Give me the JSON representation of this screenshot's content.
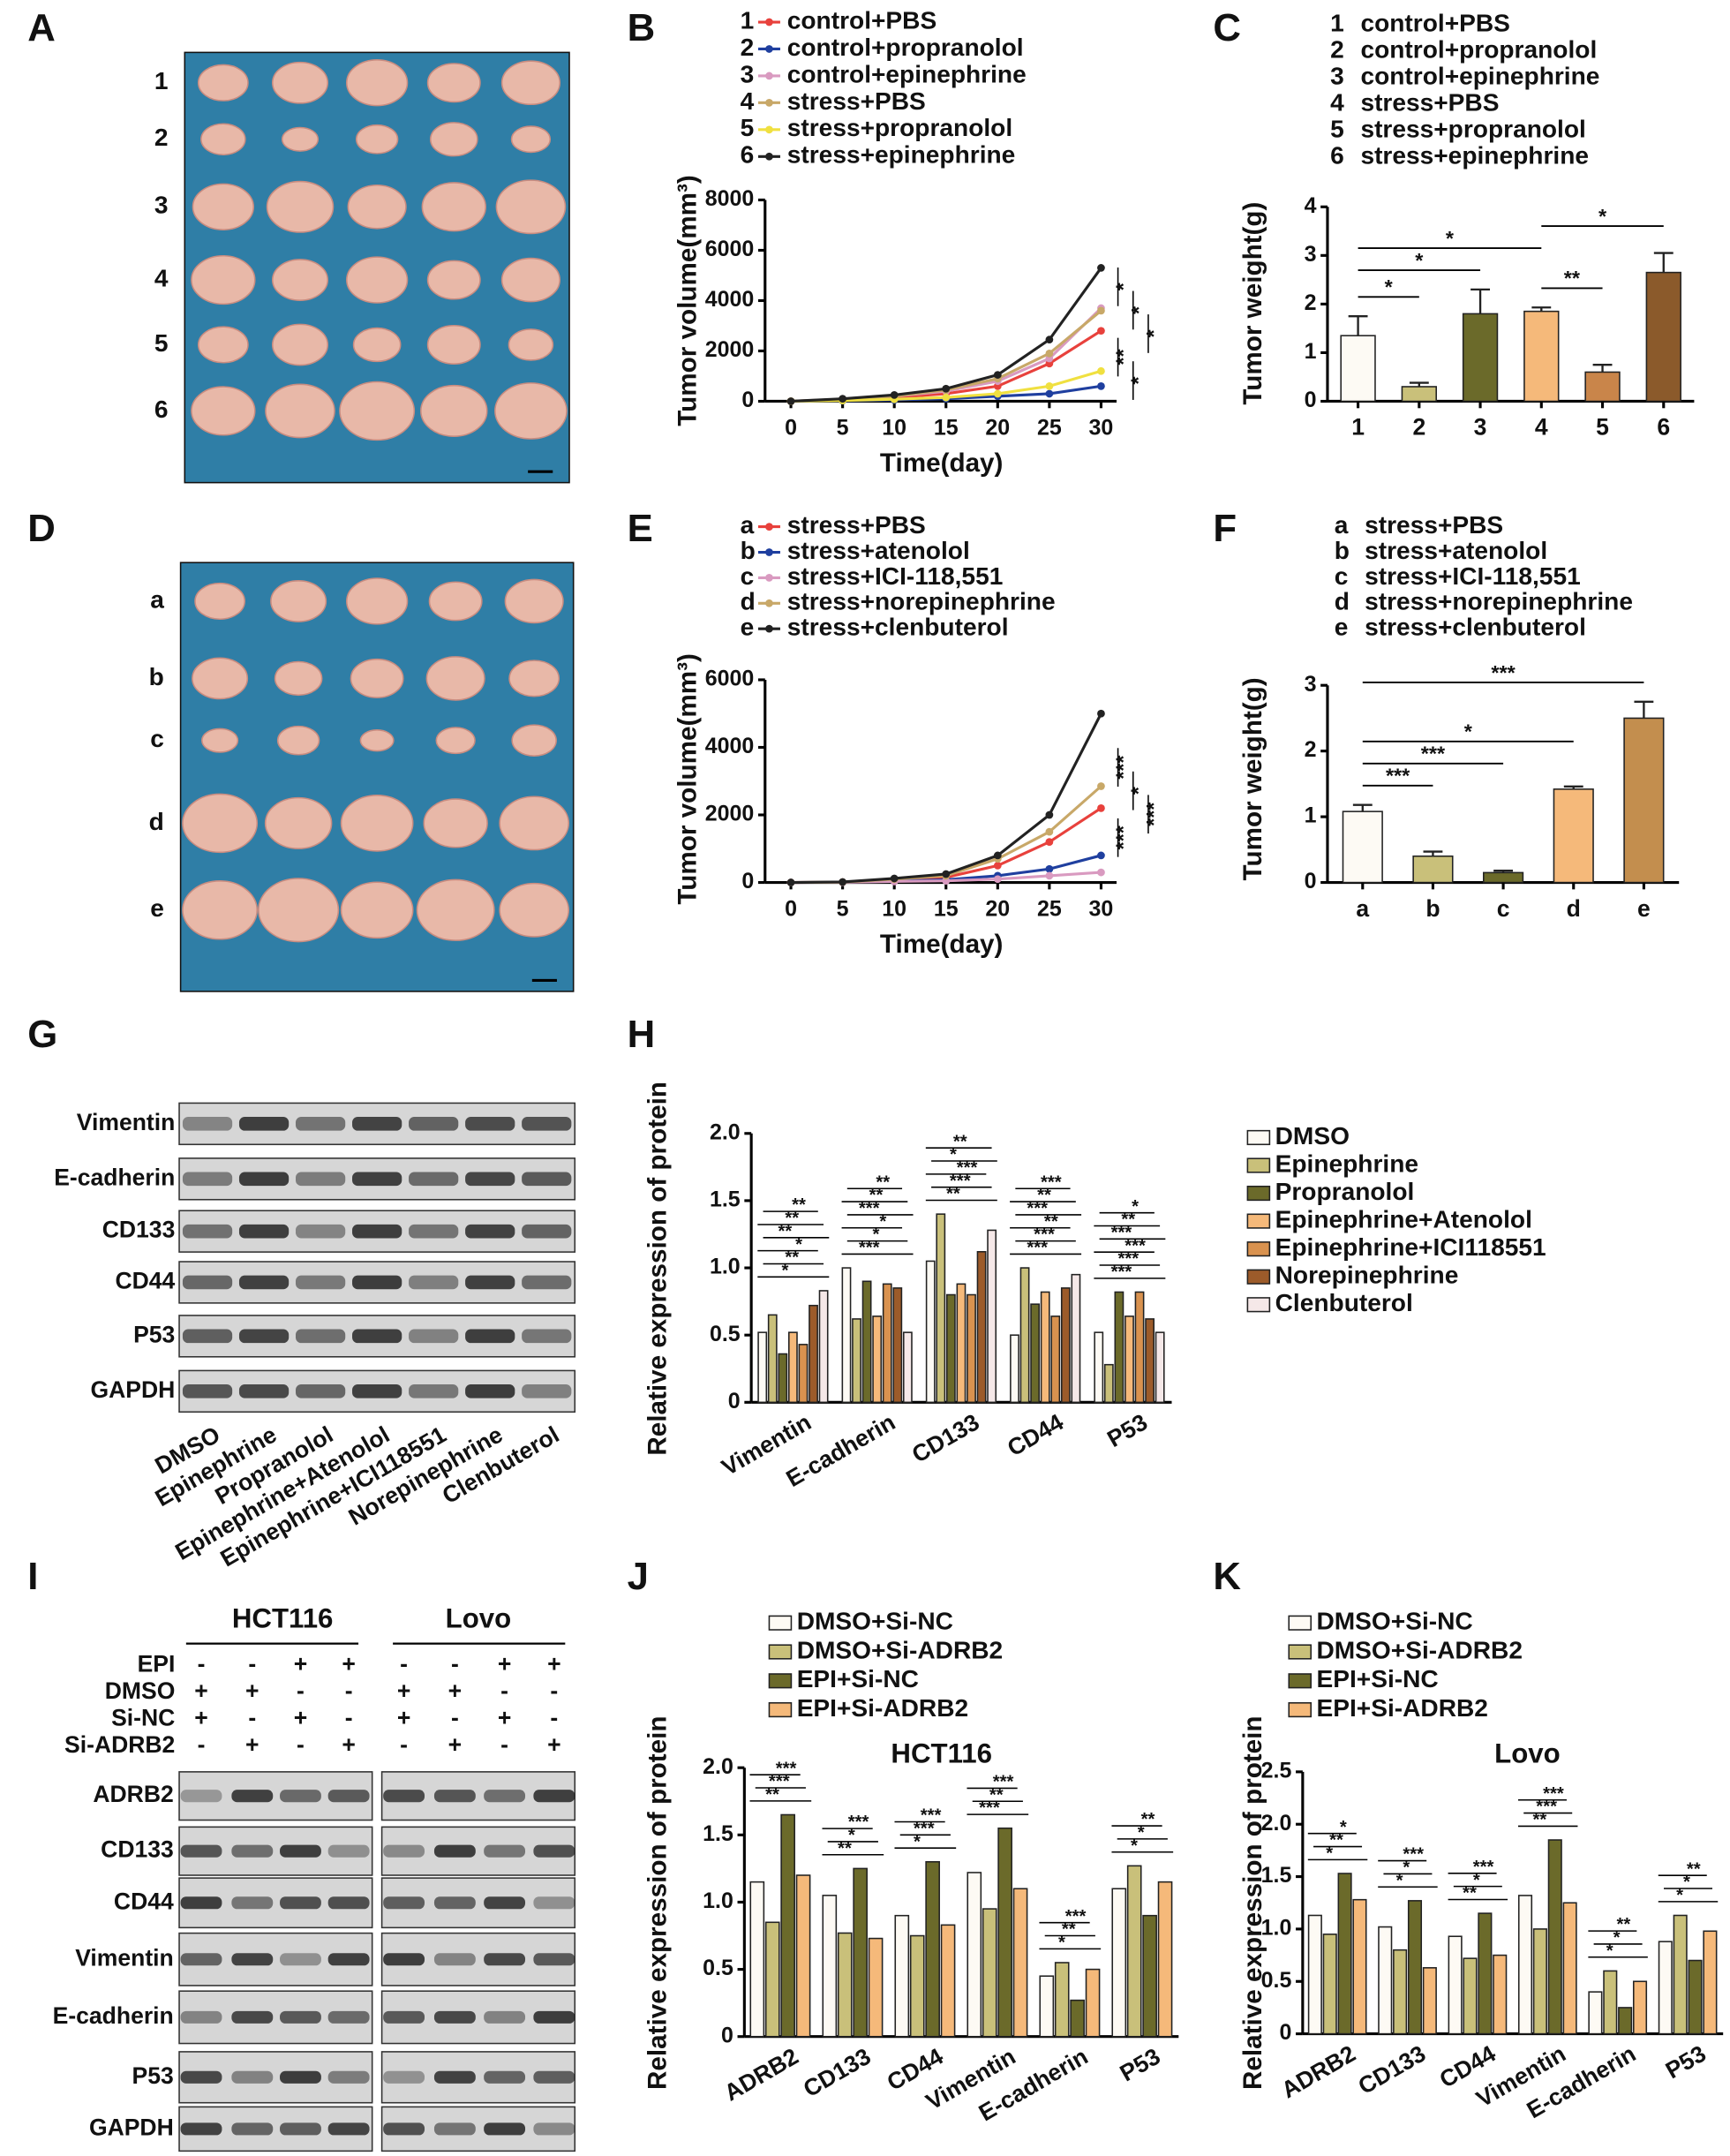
{
  "panel_labels": [
    "A",
    "B",
    "C",
    "D",
    "E",
    "F",
    "G",
    "H",
    "I",
    "J",
    "K"
  ],
  "photos": [
    {
      "row_labels": [
        "1",
        "2",
        "3",
        "4",
        "5",
        "6"
      ]
    },
    {
      "row_labels": [
        "a",
        "b",
        "c",
        "d",
        "e"
      ]
    }
  ],
  "blot_g": {
    "rows": [
      "Vimentin",
      "E-cadherin",
      "CD133",
      "CD44",
      "P53",
      "GAPDH"
    ],
    "columns": [
      "DMSO",
      "Epinephrine",
      "Propranolol",
      "Epinephrine+Atenolol",
      "Epinephrine+ICI118551",
      "Norepinephrine",
      "Clenbuterol"
    ]
  },
  "blot_i": {
    "groups": [
      "HCT116",
      "Lovo"
    ],
    "conditions": [
      {
        "name": "EPI",
        "signs": [
          "-",
          "-",
          "+",
          "+",
          "-",
          "-",
          "+",
          "+"
        ]
      },
      {
        "name": "DMSO",
        "signs": [
          "+",
          "+",
          "-",
          "-",
          "+",
          "+",
          "-",
          "-"
        ]
      },
      {
        "name": "Si-NC",
        "signs": [
          "+",
          "-",
          "+",
          "-",
          "+",
          "-",
          "+",
          "-"
        ]
      },
      {
        "name": "Si-ADRB2",
        "signs": [
          "-",
          "+",
          "-",
          "+",
          "-",
          "+",
          "-",
          "+"
        ]
      }
    ],
    "rows": [
      "ADRB2",
      "CD133",
      "CD44",
      "Vimentin",
      "E-cadherin",
      "P53",
      "GAPDH"
    ]
  },
  "chart_data": [
    {
      "type": "line",
      "x_label": "Time(day)",
      "y_label": "Tumor volume(mm³)",
      "x": [
        0,
        5,
        10,
        15,
        20,
        25,
        30
      ],
      "xlim": [
        -2.5,
        31.5
      ],
      "xticks": [
        0,
        5,
        10,
        15,
        20,
        25,
        30
      ],
      "ylim": [
        0,
        8000
      ],
      "yticks": [
        0,
        2000,
        4000,
        6000,
        8000
      ],
      "series": [
        {
          "id": "1",
          "name": "control+PBS",
          "color": "#e8413c",
          "values": [
            0,
            50,
            150,
            300,
            600,
            1500,
            2800
          ]
        },
        {
          "id": "2",
          "name": "control+propranolol",
          "color": "#1f3f9f",
          "values": [
            0,
            20,
            50,
            100,
            200,
            300,
            600
          ]
        },
        {
          "id": "3",
          "name": "control+epinephrine",
          "color": "#d99ac0",
          "values": [
            0,
            80,
            200,
            400,
            800,
            1700,
            3700
          ]
        },
        {
          "id": "4",
          "name": "stress+PBS",
          "color": "#c8a868",
          "values": [
            0,
            80,
            200,
            450,
            900,
            1900,
            3600
          ]
        },
        {
          "id": "5",
          "name": "stress+propranolol",
          "color": "#f0e040",
          "values": [
            0,
            30,
            80,
            150,
            300,
            600,
            1200
          ]
        },
        {
          "id": "6",
          "name": "stress+epinephrine",
          "color": "#222222",
          "values": [
            0,
            100,
            250,
            500,
            1050,
            2450,
            5300
          ]
        }
      ],
      "annotations": [
        "*",
        "*",
        "*",
        "**",
        "*"
      ]
    },
    {
      "type": "bar",
      "y_label": "Tumor weight(g)",
      "categories": [
        "1",
        "2",
        "3",
        "4",
        "5",
        "6"
      ],
      "category_names": [
        "control+PBS",
        "control+propranolol",
        "control+epinephrine",
        "stress+PBS",
        "stress+propranolol",
        "stress+epinephrine"
      ],
      "values": [
        1.35,
        0.3,
        1.8,
        1.85,
        0.6,
        2.65
      ],
      "errors": [
        0.4,
        0.08,
        0.5,
        0.08,
        0.15,
        0.4
      ],
      "colors": [
        "#fdfaf4",
        "#c9c07a",
        "#6b6a2a",
        "#f5b97a",
        "#c9854a",
        "#8b5a2b"
      ],
      "ylim": [
        0,
        4
      ],
      "yticks": [
        0,
        1,
        2,
        3,
        4
      ],
      "brackets": [
        {
          "label": "*",
          "from": 0,
          "to": 1
        },
        {
          "label": "*",
          "from": 0,
          "to": 2
        },
        {
          "label": "*",
          "from": 0,
          "to": 3
        },
        {
          "label": "**",
          "from": 3,
          "to": 4
        },
        {
          "label": "*",
          "from": 3,
          "to": 5
        }
      ]
    },
    {
      "type": "line",
      "x_label": "Time(day)",
      "y_label": "Tumor volume(mm³)",
      "x": [
        0,
        5,
        10,
        15,
        20,
        25,
        30
      ],
      "xlim": [
        -2.5,
        31.5
      ],
      "xticks": [
        0,
        5,
        10,
        15,
        20,
        25,
        30
      ],
      "ylim": [
        0,
        6000
      ],
      "yticks": [
        0,
        2000,
        4000,
        6000
      ],
      "series": [
        {
          "id": "a",
          "name": "stress+PBS",
          "color": "#e8413c",
          "values": [
            0,
            10,
            80,
            150,
            500,
            1200,
            2200
          ]
        },
        {
          "id": "b",
          "name": "stress+atenolol",
          "color": "#1f3f9f",
          "values": [
            0,
            5,
            40,
            80,
            200,
            400,
            800
          ]
        },
        {
          "id": "c",
          "name": "stress+ICI-118,551",
          "color": "#d99ac0",
          "values": [
            0,
            5,
            30,
            50,
            100,
            200,
            300
          ]
        },
        {
          "id": "d",
          "name": "stress+norepinephrine",
          "color": "#c8a868",
          "values": [
            0,
            10,
            100,
            200,
            700,
            1500,
            2850
          ]
        },
        {
          "id": "e",
          "name": "stress+clenbuterol",
          "color": "#222222",
          "values": [
            0,
            15,
            120,
            250,
            800,
            2000,
            5000
          ]
        }
      ],
      "annotations": [
        "***",
        "*",
        "***",
        "***"
      ]
    },
    {
      "type": "bar",
      "y_label": "Tumor weight(g)",
      "categories": [
        "a",
        "b",
        "c",
        "d",
        "e"
      ],
      "category_names": [
        "stress+PBS",
        "stress+atenolol",
        "stress+ICI-118,551",
        "stress+norepinephrine",
        "stress+clenbuterol"
      ],
      "values": [
        1.08,
        0.4,
        0.15,
        1.42,
        2.5
      ],
      "errors": [
        0.1,
        0.07,
        0.03,
        0.04,
        0.25
      ],
      "colors": [
        "#fdfaf4",
        "#c9c07a",
        "#6b6a2a",
        "#f5b97a",
        "#c38e4e"
      ],
      "ylim": [
        0,
        3
      ],
      "yticks": [
        0,
        1,
        2,
        3
      ],
      "brackets": [
        {
          "label": "***",
          "from": 0,
          "to": 1
        },
        {
          "label": "***",
          "from": 0,
          "to": 2
        },
        {
          "label": "*",
          "from": 0,
          "to": 3
        },
        {
          "label": "***",
          "from": 0,
          "to": 4
        }
      ]
    },
    {
      "type": "bar",
      "y_label": "Relative expression of protein",
      "categories": [
        "Vimentin",
        "E-cadherin",
        "CD133",
        "CD44",
        "P53"
      ],
      "ylim": [
        0,
        2
      ],
      "yticks": [
        0,
        0.5,
        {
          "value": 1,
          "label": "1.0"
        },
        1.5,
        {
          "value": 2,
          "label": "2.0"
        }
      ],
      "series": [
        {
          "name": "DMSO",
          "color": "#fdfaf4",
          "values": [
            0.52,
            1.0,
            1.05,
            0.5,
            0.52
          ]
        },
        {
          "name": "Epinephrine",
          "color": "#c9c07a",
          "values": [
            0.65,
            0.62,
            1.4,
            1.0,
            0.28
          ]
        },
        {
          "name": "Propranolol",
          "color": "#6b6a2a",
          "values": [
            0.36,
            0.9,
            0.8,
            0.73,
            0.82
          ]
        },
        {
          "name": "Epinephrine+Atenolol",
          "color": "#f5b97a",
          "values": [
            0.52,
            0.64,
            0.88,
            0.82,
            0.64
          ]
        },
        {
          "name": "Epinephrine+ICI118551",
          "color": "#d9924f",
          "values": [
            0.43,
            0.88,
            0.8,
            0.64,
            0.82
          ]
        },
        {
          "name": "Norepinephrine",
          "color": "#9c5b2a",
          "values": [
            0.72,
            0.85,
            1.12,
            0.85,
            0.62
          ]
        },
        {
          "name": "Clenbuterol",
          "color": "#f5e8e8",
          "values": [
            0.83,
            0.52,
            1.28,
            0.95,
            0.52
          ]
        }
      ],
      "significance": [
        [
          "*",
          "**",
          "*",
          "**",
          "**",
          "**"
        ],
        [
          "***",
          "*",
          "*",
          "***",
          "**",
          "**"
        ],
        [
          "**",
          "***",
          "***",
          "*",
          "**"
        ],
        [
          "***",
          "***",
          "**",
          "***",
          "**",
          "***"
        ],
        [
          "***",
          "***",
          "***",
          "***",
          "**",
          "*"
        ]
      ]
    },
    {
      "type": "bar",
      "title": "HCT116",
      "y_label": "Relative expression of protein",
      "categories": [
        "ADRB2",
        "CD133",
        "CD44",
        "Vimentin",
        "E-cadherin",
        "P53"
      ],
      "ylim": [
        0,
        2
      ],
      "yticks": [
        0,
        0.5,
        {
          "value": 1,
          "label": "1.0"
        },
        1.5,
        {
          "value": 2,
          "label": "2.0"
        }
      ],
      "series": [
        {
          "name": "DMSO+Si-NC",
          "color": "#fdfaf4",
          "values": [
            1.15,
            1.05,
            0.9,
            1.22,
            0.45,
            1.1
          ]
        },
        {
          "name": "DMSO+Si-ADRB2",
          "color": "#c9c07a",
          "values": [
            0.85,
            0.77,
            0.75,
            0.95,
            0.55,
            1.27
          ]
        },
        {
          "name": "EPI+Si-NC",
          "color": "#6b6a2a",
          "values": [
            1.65,
            1.25,
            1.3,
            1.55,
            0.27,
            0.9
          ]
        },
        {
          "name": "EPI+Si-ADRB2",
          "color": "#f5b97a",
          "values": [
            1.2,
            0.73,
            0.83,
            1.1,
            0.5,
            1.15
          ]
        }
      ],
      "significance": [
        [
          "**",
          "***",
          "***"
        ],
        [
          "**",
          "*",
          "***"
        ],
        [
          "*",
          "***",
          "***"
        ],
        [
          "***",
          "**",
          "***"
        ],
        [
          "*",
          "**",
          "***"
        ],
        [
          "*",
          "*",
          "**"
        ]
      ]
    },
    {
      "type": "bar",
      "title": "Lovo",
      "y_label": "Relative expression of protein",
      "categories": [
        "ADRB2",
        "CD133",
        "CD44",
        "Vimentin",
        "E-cadherin",
        "P53"
      ],
      "ylim": [
        0,
        2.5
      ],
      "yticks": [
        0,
        0.5,
        {
          "value": 1,
          "label": "1.0"
        },
        1.5,
        {
          "value": 2,
          "label": "2.0"
        },
        2.5
      ],
      "series": [
        {
          "name": "DMSO+Si-NC",
          "color": "#fdfaf4",
          "values": [
            1.13,
            1.02,
            0.93,
            1.32,
            0.4,
            0.88
          ]
        },
        {
          "name": "DMSO+Si-ADRB2",
          "color": "#c9c07a",
          "values": [
            0.95,
            0.8,
            0.72,
            1.0,
            0.6,
            1.13
          ]
        },
        {
          "name": "EPI+Si-NC",
          "color": "#6b6a2a",
          "values": [
            1.53,
            1.27,
            1.15,
            1.85,
            0.25,
            0.7
          ]
        },
        {
          "name": "EPI+Si-ADRB2",
          "color": "#f5b97a",
          "values": [
            1.28,
            0.63,
            0.75,
            1.25,
            0.5,
            0.98
          ]
        }
      ],
      "significance": [
        [
          "*",
          "**",
          "*"
        ],
        [
          "*",
          "*",
          "***"
        ],
        [
          "**",
          "*",
          "***"
        ],
        [
          "**",
          "***",
          "***"
        ],
        [
          "*",
          "*",
          "**"
        ],
        [
          "*",
          "*",
          "**"
        ]
      ]
    }
  ]
}
